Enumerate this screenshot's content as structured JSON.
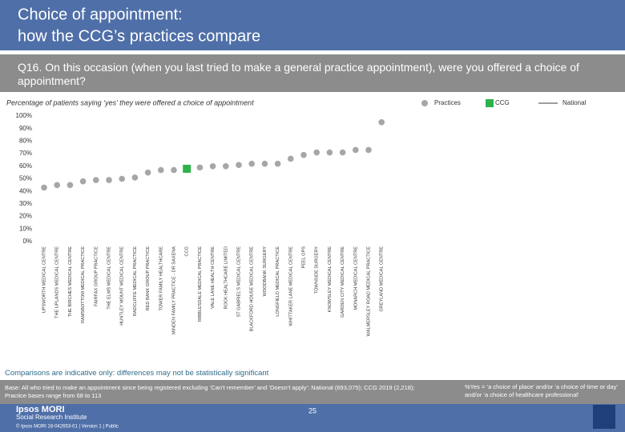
{
  "page": {
    "title_lines": [
      "Choice of appointment:",
      "how the CCG’s practices compare"
    ],
    "question": "Q16. On this occasion (when you last tried to make a general practice appointment), were you offered a choice of appointment?",
    "note": "Comparisons are indicative only: differences may not be statistically significant",
    "base": "Base: All who tried to make an appointment since being registered excluding ‘Can’t remember’ and ‘Doesn’t apply’: National (693,075); CCG 2019 (2,218); Practice bases range from 68 to 113",
    "definition": "%Yes = ‘a choice of place’ and/or ‘a choice of time or day’ and/or ‘a choice of healthcare professional’",
    "brand": "Ipsos MORI",
    "institute": "Social Research Institute",
    "page_number": "25",
    "footer": "© Ipsos MORI    18-042653-01 | Version 1 | Public"
  },
  "chart_data": {
    "type": "dot",
    "subtitle": "Percentage of patients saying ‘yes’ they were offered a choice of appointment",
    "categories": [
      "UPSWORTH MEDICAL CENTRE",
      "THE UPLANDS MEDICAL CENTRE",
      "THE BIRCHES MEDICAL CENTRE",
      "RAMSBOTTOM MEDICAL PRACTICE",
      "FAIRFAX GROUP PRACTICE",
      "THE ELMS MEDICAL CENTRE",
      "HUNTLEY MOUNT MEDICAL CENTRE",
      "RADCLIFFE MEDICAL PRACTICE",
      "RED BANK GROUP PRACTICE",
      "TOWER FAMILY HEALTHCARE",
      "MINDEN FAMILY PRACTICE - DR SAXENA",
      "CCG",
      "RIBBLESDALE MEDICAL PRACTICE",
      "VALE LANE HEALTH CENTRE",
      "ROCK HEALTHCARE LIMITED",
      "ST GABRIEL'S MEDICAL CENTRE",
      "BLACKFORD HOUSE MEDICAL CENTRE",
      "WOODBANK SURGERY",
      "LONGFIELD MEDICAL PRACTICE",
      "WHITTAKER LANE MEDICAL CENTRE",
      "PEEL GPS",
      "TOWNSIDE SURGERY",
      "KNOWSLEY MEDICAL CENTRE",
      "GARDEN CITY MEDICAL CENTRE",
      "MONARCH MEDICAL CENTRE",
      "WALMERSLEY ROAD MEDICAL PRACTICE",
      "GREYLAND MEDICAL CENTRE"
    ],
    "series": [
      {
        "name": "Practices",
        "color": "#a6a6a6",
        "values": [
          43,
          45,
          45,
          48,
          49,
          49,
          50,
          51,
          55,
          57,
          57,
          null,
          59,
          60,
          60,
          61,
          62,
          62,
          62,
          66,
          69,
          71,
          71,
          71,
          73,
          73,
          95
        ]
      },
      {
        "name": "CCG",
        "color": "#2db24a",
        "values": [
          null,
          null,
          null,
          null,
          null,
          null,
          null,
          null,
          null,
          null,
          null,
          58,
          null,
          null,
          null,
          null,
          null,
          null,
          null,
          null,
          null,
          null,
          null,
          null,
          null,
          null,
          null
        ]
      },
      {
        "name": "National",
        "color": "#7f7f7f",
        "values": [
          null,
          null,
          null,
          null,
          null,
          null,
          null,
          null,
          null,
          null,
          null,
          null,
          null,
          null,
          null,
          null,
          null,
          null,
          null,
          null,
          null,
          null,
          null,
          null,
          null,
          null,
          null
        ]
      }
    ],
    "ylim": [
      0,
      100
    ],
    "yticks": [
      {
        "value": 0,
        "label": "0%"
      },
      {
        "value": 10,
        "label": "10%"
      },
      {
        "value": 20,
        "label": "20%"
      },
      {
        "value": 30,
        "label": "30%"
      },
      {
        "value": 40,
        "label": "40%"
      },
      {
        "value": 50,
        "label": "50%"
      },
      {
        "value": 60,
        "label": "60%"
      },
      {
        "value": 70,
        "label": "70%"
      },
      {
        "value": 80,
        "label": "80%"
      },
      {
        "value": 90,
        "label": "90%"
      },
      {
        "value": 100,
        "label": "100%"
      }
    ],
    "grid": false
  }
}
